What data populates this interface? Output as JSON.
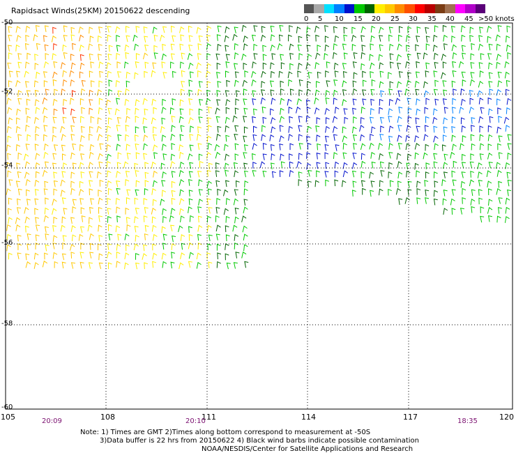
{
  "title": "Rapidsact Winds(25KM) 20150622 descending",
  "legend": {
    "colors": [
      "#555555",
      "#a8a8a8",
      "#00e0ff",
      "#0080ff",
      "#0010cc",
      "#00c800",
      "#006400",
      "#ffee00",
      "#ffc800",
      "#ff8c00",
      "#ff5000",
      "#ff0000",
      "#b80000",
      "#7a3c14",
      "#a07050",
      "#ff00ff",
      "#b000c8",
      "#5a0078"
    ],
    "labels": [
      "0",
      "5",
      "10",
      "15",
      "20",
      "25",
      "30",
      "35",
      "40",
      "45",
      ">50 knots"
    ]
  },
  "map": {
    "lat_labels": [
      "-50",
      "-52",
      "-54",
      "-56",
      "-58",
      "-60"
    ],
    "lon_labels": [
      "105",
      "108",
      "111",
      "114",
      "117",
      "120"
    ],
    "time_labels": [
      "20:09",
      "20:10",
      "18:35"
    ]
  },
  "notes": [
    "Note: 1) Times are GMT 2)Times along bottom correspond to measurement at -50S",
    "3)Data buffer is 22 hrs from 20150622 4) Black wind barbs indicate possible contamination",
    "NOAA/NESDIS/Center for Satellite Applications and Research"
  ]
}
